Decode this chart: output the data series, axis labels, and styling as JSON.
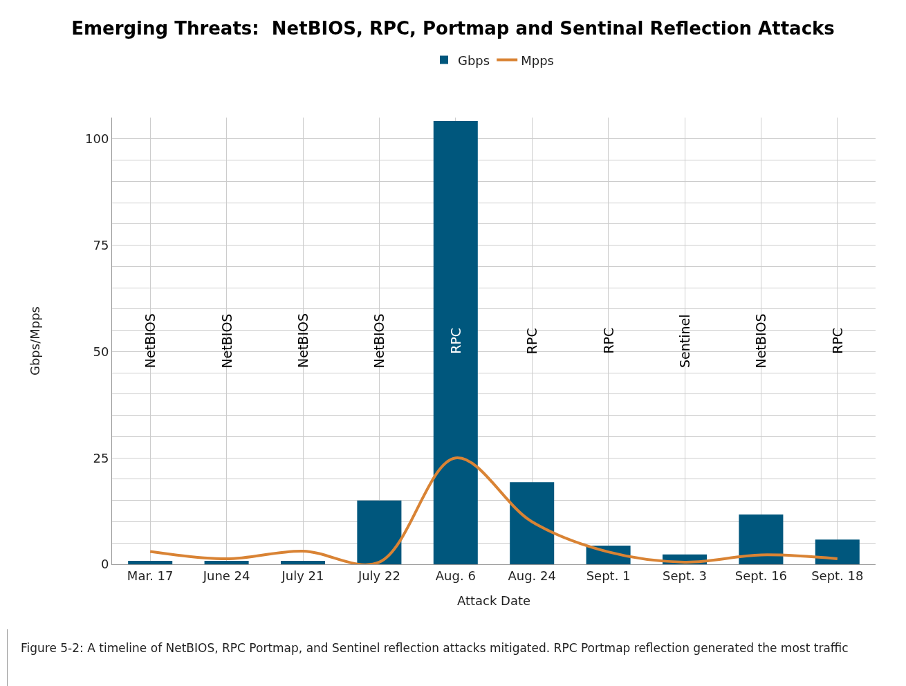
{
  "chart_data": {
    "type": "bar",
    "title": "Emerging Threats:  NetBIOS, RPC, Portmap and Sentinal Reflection Attacks",
    "xlabel": "Attack Date",
    "ylabel": "Gbps/Mpps",
    "categories": [
      "Mar. 17",
      "June 24",
      "July 21",
      "July 22",
      "Aug. 6",
      "Aug. 24",
      "Sept. 1",
      "Sept. 3",
      "Sept. 16",
      "Sept. 18"
    ],
    "series": [
      {
        "name": "Gbps",
        "color": "#00577d",
        "values": [
          0.8,
          0.8,
          0.8,
          15,
          104.2,
          19.3,
          4.4,
          2.3,
          11.7,
          5.8
        ]
      },
      {
        "name": "Mpps",
        "type": "line",
        "color": "#d98334",
        "values": [
          3.0,
          1.3,
          3.1,
          0.5,
          25,
          10,
          2.9,
          0.5,
          2.2,
          1.3
        ]
      }
    ],
    "ylim": [
      0,
      105
    ],
    "yticks": [
      0,
      {
        "value": 5,
        "label": null
      },
      {
        "value": 10,
        "label": null
      },
      {
        "value": 15,
        "label": null
      },
      {
        "value": 20,
        "label": null
      },
      25,
      {
        "value": 30,
        "label": null
      },
      {
        "value": 35,
        "label": null
      },
      {
        "value": 40,
        "label": null
      },
      {
        "value": 45,
        "label": null
      },
      50,
      {
        "value": 55,
        "label": null
      },
      {
        "value": 60,
        "label": null
      },
      {
        "value": 65,
        "label": null
      },
      {
        "value": 70,
        "label": null
      },
      75,
      {
        "value": 80,
        "label": null
      },
      {
        "value": 85,
        "label": null
      },
      {
        "value": 90,
        "label": null
      },
      {
        "value": 95,
        "label": null
      },
      100
    ],
    "grid": true,
    "legend": "top",
    "marker": "none",
    "line_style": "solid",
    "annotations": [
      "NetBIOS",
      "NetBIOS",
      "NetBIOS",
      "NetBIOS",
      "RPC",
      "RPC",
      "RPC",
      "Sentinel",
      "NetBIOS",
      "RPC",
      "Figure 5-2: A timeline of NetBIOS, RPC Portmap, and Sentinel reflection attacks mitigated. RPC Portmap reflection generated the most traffic"
    ]
  }
}
